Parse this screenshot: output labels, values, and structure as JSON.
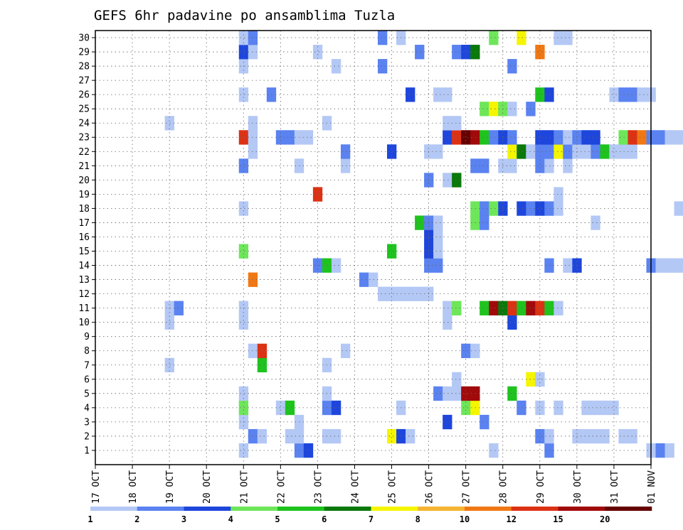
{
  "chart_data": {
    "type": "heatmap",
    "title": "GEFS 6hr padavine po ansamblima Tuzla",
    "xlabel": "",
    "ylabel": "",
    "x_ticks": [
      "17 OCT",
      "18 OCT",
      "19 OCT",
      "20 OCT",
      "21 OCT",
      "22 OCT",
      "23 OCT",
      "24 OCT",
      "25 OCT",
      "26 OCT",
      "27 OCT",
      "28 OCT",
      "29 OCT",
      "30 OCT",
      "31 OCT",
      "01 NOV"
    ],
    "y_ticks": [
      1,
      2,
      3,
      4,
      5,
      6,
      7,
      8,
      9,
      10,
      11,
      12,
      13,
      14,
      15,
      16,
      17,
      18,
      19,
      20,
      21,
      22,
      23,
      24,
      25,
      26,
      27,
      28,
      29,
      30
    ],
    "xlim": [
      "17 OCT",
      "01 NOV"
    ],
    "ylim": [
      0,
      30
    ],
    "grid": true,
    "time_step_hours": 6,
    "colorbar": {
      "labels": [
        "1",
        "2",
        "3",
        "4",
        "5",
        "6",
        "7",
        "8",
        "10",
        "12",
        "15",
        "20"
      ],
      "colors": [
        "#b4c8f5",
        "#5a82f0",
        "#1e46dc",
        "#6ee65a",
        "#1ec31e",
        "#0a780a",
        "#f5f500",
        "#f5b432",
        "#f07814",
        "#dc3214",
        "#a00a0a",
        "#640000"
      ]
    },
    "levels_desc": "value = colorbar class index 1..12 (1=#b4c8f5 ... 12=#640000); x = 6-hour step index counted from 17 OCT 00Z",
    "cells": [
      {
        "m": 1,
        "x": [
          [
            16,
            1
          ],
          [
            22,
            2
          ],
          [
            23,
            3
          ],
          [
            43,
            1
          ],
          [
            49,
            2
          ],
          [
            60,
            1
          ],
          [
            61,
            2
          ],
          [
            62,
            1
          ],
          [
            64,
            2
          ],
          [
            65,
            3
          ],
          [
            69,
            1
          ],
          [
            71,
            2
          ],
          [
            72,
            3
          ],
          [
            74,
            3
          ],
          [
            75,
            5
          ],
          [
            76,
            1
          ],
          [
            78,
            2
          ],
          [
            82,
            2
          ],
          [
            86,
            1
          ],
          [
            87,
            3
          ],
          [
            88,
            12
          ]
        ]
      },
      {
        "m": 2,
        "x": [
          [
            17,
            2
          ],
          [
            18,
            1
          ],
          [
            21,
            1
          ],
          [
            22,
            1
          ],
          [
            25,
            1
          ],
          [
            26,
            1
          ],
          [
            32,
            7
          ],
          [
            33,
            3
          ],
          [
            34,
            1
          ],
          [
            48,
            2
          ],
          [
            49,
            1
          ],
          [
            52,
            1
          ],
          [
            53,
            1
          ],
          [
            54,
            1
          ],
          [
            55,
            1
          ],
          [
            57,
            1
          ],
          [
            58,
            1
          ],
          [
            64,
            3
          ],
          [
            65,
            9
          ],
          [
            66,
            5
          ],
          [
            67,
            1
          ],
          [
            76,
            1
          ],
          [
            77,
            1
          ],
          [
            78,
            1
          ]
        ]
      },
      {
        "m": 3,
        "x": [
          [
            16,
            1
          ],
          [
            22,
            1
          ],
          [
            38,
            3
          ],
          [
            42,
            2
          ]
        ]
      },
      {
        "m": 4,
        "x": [
          [
            16,
            4
          ],
          [
            20,
            1
          ],
          [
            21,
            5
          ],
          [
            25,
            2
          ],
          [
            26,
            3
          ],
          [
            33,
            1
          ],
          [
            40,
            4
          ],
          [
            41,
            7
          ],
          [
            46,
            2
          ],
          [
            48,
            1
          ],
          [
            50,
            1
          ],
          [
            53,
            1
          ],
          [
            54,
            1
          ],
          [
            55,
            1
          ],
          [
            56,
            1
          ],
          [
            66,
            1
          ],
          [
            68,
            1
          ]
        ]
      },
      {
        "m": 5,
        "x": [
          [
            16,
            1
          ],
          [
            25,
            1
          ],
          [
            37,
            2
          ],
          [
            38,
            1
          ],
          [
            39,
            1
          ],
          [
            40,
            11
          ],
          [
            41,
            11
          ],
          [
            45,
            5
          ],
          [
            68,
            1
          ],
          [
            86,
            10
          ],
          [
            87,
            10
          ]
        ]
      },
      {
        "m": 6,
        "x": [
          [
            39,
            1
          ],
          [
            47,
            7
          ],
          [
            48,
            1
          ],
          [
            87,
            6
          ]
        ]
      },
      {
        "m": 7,
        "x": [
          [
            8,
            1
          ],
          [
            18,
            5
          ],
          [
            25,
            1
          ]
        ]
      },
      {
        "m": 8,
        "x": [
          [
            17,
            1
          ],
          [
            18,
            10
          ],
          [
            27,
            1
          ],
          [
            40,
            2
          ],
          [
            41,
            1
          ],
          [
            70,
            2
          ],
          [
            71,
            3
          ],
          [
            72,
            1
          ]
        ]
      },
      {
        "m": 9,
        "x": [
          [
            70,
            1
          ],
          [
            71,
            12
          ],
          [
            72,
            1
          ]
        ]
      },
      {
        "m": 10,
        "x": [
          [
            8,
            1
          ],
          [
            16,
            1
          ],
          [
            38,
            1
          ],
          [
            45,
            3
          ],
          [
            88,
            1
          ]
        ]
      },
      {
        "m": 11,
        "x": [
          [
            8,
            1
          ],
          [
            9,
            2
          ],
          [
            16,
            1
          ],
          [
            38,
            1
          ],
          [
            39,
            4
          ],
          [
            42,
            5
          ],
          [
            43,
            11
          ],
          [
            44,
            6
          ],
          [
            45,
            10
          ],
          [
            46,
            5
          ],
          [
            47,
            11
          ],
          [
            48,
            10
          ],
          [
            49,
            5
          ],
          [
            50,
            1
          ]
        ]
      },
      {
        "m": 12,
        "x": [
          [
            31,
            1
          ],
          [
            32,
            1
          ],
          [
            33,
            1
          ],
          [
            34,
            1
          ],
          [
            35,
            1
          ],
          [
            36,
            1
          ],
          [
            69,
            1
          ]
        ]
      },
      {
        "m": 13,
        "x": [
          [
            17,
            9
          ],
          [
            29,
            2
          ],
          [
            30,
            1
          ],
          [
            66,
            3
          ],
          [
            68,
            2
          ],
          [
            69,
            3
          ],
          [
            70,
            2
          ]
        ]
      },
      {
        "m": 14,
        "x": [
          [
            24,
            2
          ],
          [
            25,
            5
          ],
          [
            26,
            1
          ],
          [
            36,
            2
          ],
          [
            37,
            2
          ],
          [
            49,
            2
          ],
          [
            51,
            1
          ],
          [
            52,
            3
          ],
          [
            60,
            2
          ],
          [
            61,
            1
          ],
          [
            62,
            1
          ],
          [
            63,
            1
          ],
          [
            88,
            4
          ]
        ]
      },
      {
        "m": 15,
        "x": [
          [
            16,
            4
          ],
          [
            32,
            5
          ],
          [
            36,
            3
          ],
          [
            37,
            1
          ]
        ]
      },
      {
        "m": 16,
        "x": [
          [
            36,
            3
          ],
          [
            37,
            1
          ],
          [
            72,
            5
          ],
          [
            73,
            9
          ]
        ]
      },
      {
        "m": 17,
        "x": [
          [
            35,
            5
          ],
          [
            36,
            2
          ],
          [
            37,
            1
          ],
          [
            41,
            4
          ],
          [
            42,
            2
          ],
          [
            54,
            1
          ]
        ]
      },
      {
        "m": 18,
        "x": [
          [
            16,
            1
          ],
          [
            41,
            4
          ],
          [
            42,
            2
          ],
          [
            43,
            4
          ],
          [
            44,
            3
          ],
          [
            46,
            3
          ],
          [
            47,
            2
          ],
          [
            48,
            3
          ],
          [
            49,
            2
          ],
          [
            50,
            1
          ],
          [
            63,
            1
          ],
          [
            64,
            1
          ],
          [
            88,
            12
          ]
        ]
      },
      {
        "m": 19,
        "x": [
          [
            24,
            10
          ],
          [
            50,
            1
          ],
          [
            87,
            11
          ],
          [
            88,
            6
          ]
        ]
      },
      {
        "m": 20,
        "x": [
          [
            36,
            2
          ],
          [
            38,
            1
          ],
          [
            39,
            6
          ]
        ]
      },
      {
        "m": 21,
        "x": [
          [
            16,
            2
          ],
          [
            22,
            1
          ],
          [
            27,
            1
          ],
          [
            41,
            2
          ],
          [
            42,
            2
          ],
          [
            44,
            1
          ],
          [
            45,
            1
          ],
          [
            48,
            2
          ],
          [
            49,
            1
          ],
          [
            51,
            1
          ],
          [
            67,
            2
          ],
          [
            68,
            3
          ],
          [
            69,
            5
          ],
          [
            70,
            1
          ],
          [
            86,
            2
          ],
          [
            87,
            3
          ],
          [
            88,
            5
          ]
        ]
      },
      {
        "m": 22,
        "x": [
          [
            17,
            1
          ],
          [
            27,
            2
          ],
          [
            32,
            3
          ],
          [
            36,
            1
          ],
          [
            37,
            1
          ],
          [
            45,
            7
          ],
          [
            46,
            6
          ],
          [
            47,
            1
          ],
          [
            48,
            2
          ],
          [
            49,
            2
          ],
          [
            50,
            7
          ],
          [
            51,
            2
          ],
          [
            52,
            1
          ],
          [
            53,
            1
          ],
          [
            54,
            2
          ],
          [
            55,
            5
          ],
          [
            56,
            1
          ],
          [
            57,
            1
          ],
          [
            58,
            1
          ]
        ]
      },
      {
        "m": 23,
        "x": [
          [
            16,
            10
          ],
          [
            17,
            1
          ],
          [
            20,
            2
          ],
          [
            21,
            2
          ],
          [
            22,
            1
          ],
          [
            23,
            1
          ],
          [
            38,
            3
          ],
          [
            39,
            10
          ],
          [
            40,
            12
          ],
          [
            41,
            11
          ],
          [
            42,
            5
          ],
          [
            43,
            2
          ],
          [
            44,
            3
          ],
          [
            45,
            2
          ],
          [
            48,
            3
          ],
          [
            49,
            3
          ],
          [
            50,
            2
          ],
          [
            51,
            1
          ],
          [
            52,
            2
          ],
          [
            53,
            3
          ],
          [
            54,
            3
          ],
          [
            57,
            4
          ],
          [
            58,
            10
          ],
          [
            59,
            9
          ],
          [
            60,
            2
          ],
          [
            61,
            2
          ],
          [
            62,
            1
          ],
          [
            63,
            1
          ],
          [
            64,
            1
          ],
          [
            65,
            1
          ],
          [
            66,
            1
          ],
          [
            67,
            1
          ],
          [
            69,
            1
          ],
          [
            74,
            3
          ],
          [
            84,
            4
          ],
          [
            85,
            11
          ],
          [
            86,
            9
          ]
        ]
      },
      {
        "m": 24,
        "x": [
          [
            8,
            1
          ],
          [
            17,
            1
          ],
          [
            25,
            1
          ],
          [
            38,
            1
          ],
          [
            39,
            1
          ]
        ]
      },
      {
        "m": 25,
        "x": [
          [
            42,
            4
          ],
          [
            43,
            7
          ],
          [
            44,
            4
          ],
          [
            45,
            1
          ],
          [
            47,
            2
          ],
          [
            87,
            1
          ]
        ]
      },
      {
        "m": 26,
        "x": [
          [
            16,
            1
          ],
          [
            19,
            2
          ],
          [
            34,
            3
          ],
          [
            37,
            1
          ],
          [
            38,
            1
          ],
          [
            48,
            5
          ],
          [
            49,
            3
          ],
          [
            56,
            1
          ],
          [
            57,
            2
          ],
          [
            58,
            2
          ],
          [
            59,
            1
          ],
          [
            60,
            1
          ],
          [
            83,
            2
          ],
          [
            84,
            2
          ]
        ]
      },
      {
        "m": 28,
        "x": [
          [
            16,
            1
          ],
          [
            26,
            1
          ],
          [
            31,
            2
          ],
          [
            45,
            2
          ]
        ]
      },
      {
        "m": 29,
        "x": [
          [
            16,
            3
          ],
          [
            17,
            1
          ],
          [
            24,
            1
          ],
          [
            35,
            2
          ],
          [
            39,
            2
          ],
          [
            40,
            3
          ],
          [
            41,
            6
          ],
          [
            48,
            9
          ]
        ]
      },
      {
        "m": 30,
        "x": [
          [
            16,
            1
          ],
          [
            17,
            2
          ],
          [
            31,
            2
          ],
          [
            33,
            1
          ],
          [
            43,
            4
          ],
          [
            46,
            7
          ],
          [
            50,
            1
          ],
          [
            51,
            1
          ]
        ]
      }
    ]
  }
}
